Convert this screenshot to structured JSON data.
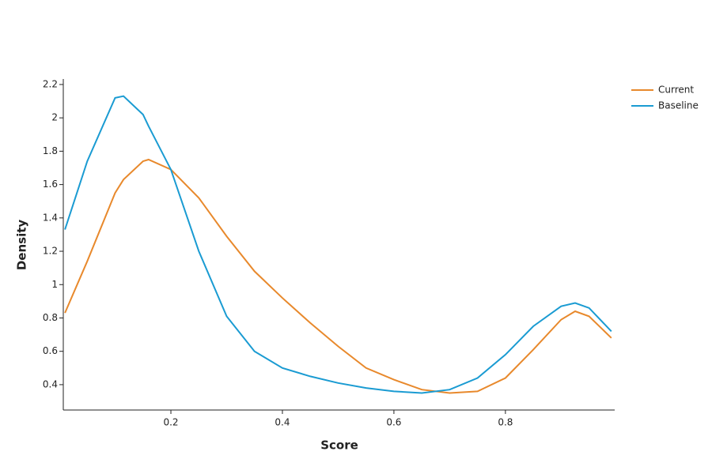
{
  "chart_data": {
    "type": "line",
    "x_label": "Score",
    "y_label": "Density",
    "x": [
      0.01,
      0.05,
      0.1,
      0.115,
      0.15,
      0.16,
      0.2,
      0.25,
      0.3,
      0.35,
      0.4,
      0.45,
      0.5,
      0.55,
      0.6,
      0.65,
      0.7,
      0.75,
      0.8,
      0.85,
      0.9,
      0.925,
      0.95,
      0.99
    ],
    "series": [
      {
        "name": "Current",
        "color": "#e8892c",
        "values": [
          0.83,
          1.14,
          1.55,
          1.63,
          1.74,
          1.75,
          1.69,
          1.52,
          1.29,
          1.08,
          0.92,
          0.77,
          0.63,
          0.5,
          0.43,
          0.37,
          0.35,
          0.36,
          0.44,
          0.61,
          0.79,
          0.84,
          0.81,
          0.68
        ]
      },
      {
        "name": "Baseline",
        "color": "#1a9bd2",
        "values": [
          1.33,
          1.74,
          2.12,
          2.13,
          2.02,
          1.95,
          1.69,
          1.2,
          0.81,
          0.6,
          0.5,
          0.45,
          0.41,
          0.38,
          0.36,
          0.35,
          0.37,
          0.44,
          0.58,
          0.75,
          0.87,
          0.89,
          0.86,
          0.72
        ]
      }
    ],
    "xlim": [
      0.007,
      0.996
    ],
    "ylim": [
      0.248,
      2.233
    ],
    "xticks": [
      0.2,
      0.4,
      0.6,
      0.8
    ],
    "yticks": [
      0.4,
      0.6,
      0.8,
      1,
      1.2,
      1.4,
      1.6,
      1.8,
      2,
      2.2
    ],
    "grid": false,
    "legend": "top-right"
  }
}
